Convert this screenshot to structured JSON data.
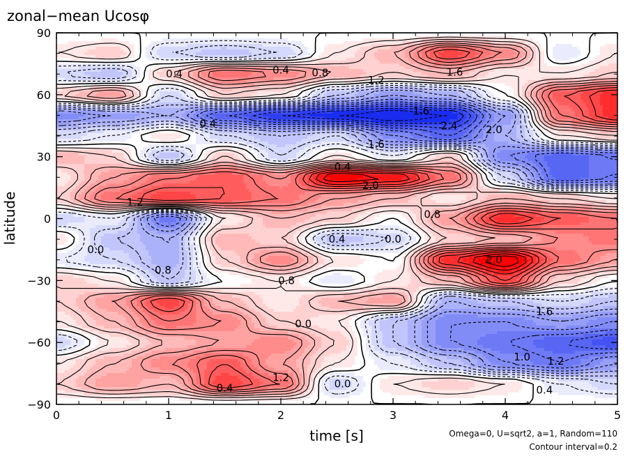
{
  "chart_data": {
    "type": "heatmap",
    "title": "zonal−mean Ucosφ",
    "xlabel": "time [s]",
    "ylabel": "latitude",
    "xlim": [
      0,
      5
    ],
    "ylim": [
      -90,
      90
    ],
    "xticks": [
      "0",
      "1",
      "2",
      "3",
      "4",
      "5"
    ],
    "yticks": [
      "90",
      "60",
      "30",
      "0",
      "−30",
      "−60",
      "−90"
    ],
    "notes": [
      "Omega=0, U=sqrt2, a=1, Random=110",
      "Contour interval=0.2"
    ],
    "contour_interval": 0.2,
    "colormap": {
      "positive": "#ff0000",
      "zero": "#ffffff",
      "negative": "#1a2cf0"
    },
    "x": [
      0,
      0.5,
      1,
      1.5,
      2,
      2.5,
      3,
      3.5,
      4,
      4.5,
      5
    ],
    "y": [
      90,
      80,
      70,
      60,
      50,
      40,
      30,
      20,
      10,
      0,
      -10,
      -20,
      -30,
      -40,
      -50,
      -60,
      -70,
      -80,
      -90
    ],
    "z": [
      [
        0,
        0,
        0,
        0,
        0,
        0,
        0,
        0,
        0,
        0,
        0
      ],
      [
        0.2,
        0.4,
        -0.4,
        -0.6,
        -0.4,
        0.2,
        0.6,
        1.6,
        1.0,
        -0.2,
        0.2
      ],
      [
        -0.4,
        -0.6,
        0.4,
        1.2,
        1.0,
        0.6,
        0.4,
        0.6,
        0.2,
        0.2,
        0.4
      ],
      [
        0.4,
        0.8,
        -0.4,
        0.4,
        0.2,
        -0.6,
        -1.0,
        -0.8,
        0.0,
        1.4,
        1.8
      ],
      [
        -1.2,
        -1.0,
        -0.8,
        -1.6,
        -2.0,
        -2.2,
        -2.4,
        -2.2,
        -1.0,
        1.2,
        1.8
      ],
      [
        -0.4,
        -0.2,
        0.2,
        -0.4,
        -0.6,
        -0.4,
        -1.2,
        -1.6,
        -0.8,
        0.2,
        0.4
      ],
      [
        0.6,
        0.4,
        -0.6,
        0.4,
        -0.4,
        0.2,
        -0.2,
        0.4,
        -1.2,
        -1.6,
        -1.4
      ],
      [
        0.2,
        0.8,
        1.2,
        1.4,
        1.0,
        2.2,
        2.0,
        1.2,
        -0.4,
        -1.6,
        -1.4
      ],
      [
        0.4,
        1.2,
        1.6,
        1.4,
        1.2,
        0.8,
        0.6,
        0.2,
        0.6,
        0.4,
        0.2
      ],
      [
        -0.4,
        -0.2,
        -1.4,
        0.2,
        0.6,
        0.4,
        0.0,
        0.8,
        1.8,
        1.4,
        1.2
      ],
      [
        0.2,
        -0.6,
        -0.8,
        0.6,
        0.4,
        -0.6,
        -0.4,
        0.4,
        0.6,
        1.0,
        1.2
      ],
      [
        -0.2,
        -0.4,
        -0.8,
        0.4,
        1.0,
        0.2,
        0.0,
        1.8,
        2.4,
        1.2,
        0.8
      ],
      [
        0.4,
        0.2,
        -0.6,
        0.0,
        0.2,
        -0.2,
        0.2,
        0.6,
        1.6,
        0.4,
        0.0
      ],
      [
        0.4,
        0.8,
        1.6,
        0.6,
        0.2,
        0.6,
        0.8,
        -0.8,
        -0.6,
        -0.4,
        -0.6
      ],
      [
        0.2,
        0.6,
        1.2,
        1.0,
        0.4,
        0.2,
        -0.6,
        -1.2,
        -1.2,
        -1.0,
        -1.2
      ],
      [
        -0.4,
        0.2,
        0.6,
        0.8,
        1.0,
        0.4,
        -0.6,
        -1.2,
        -1.4,
        -1.6,
        -1.8
      ],
      [
        0.2,
        0.6,
        1.0,
        1.4,
        0.8,
        0.2,
        -0.2,
        -0.6,
        -1.2,
        -1.4,
        -1.0
      ],
      [
        0.4,
        0.8,
        0.6,
        1.6,
        1.2,
        -0.4,
        0.2,
        0.4,
        0.2,
        -0.2,
        -0.4
      ],
      [
        0,
        0,
        0,
        0,
        0,
        0,
        0,
        0,
        0,
        0,
        0
      ]
    ],
    "contour_labels": [
      {
        "x": 2.0,
        "y": 72,
        "text": "0.4"
      },
      {
        "x": 2.35,
        "y": 70.5,
        "text": "0.8"
      },
      {
        "x": 2.85,
        "y": 67,
        "text": "1.2"
      },
      {
        "x": 3.55,
        "y": 71,
        "text": "1.6"
      },
      {
        "x": 1.05,
        "y": 70,
        "text": "0.4"
      },
      {
        "x": 3.25,
        "y": 52,
        "text": "1.6"
      },
      {
        "x": 3.5,
        "y": 45,
        "text": "2.4"
      },
      {
        "x": 3.9,
        "y": 43,
        "text": "2.0"
      },
      {
        "x": 2.85,
        "y": 36,
        "text": "1.6"
      },
      {
        "x": 1.35,
        "y": 46,
        "text": "0.4"
      },
      {
        "x": 2.55,
        "y": 25,
        "text": "0.4"
      },
      {
        "x": 2.8,
        "y": 16,
        "text": "2.0"
      },
      {
        "x": 0.7,
        "y": 8,
        "text": "1.2"
      },
      {
        "x": 3.35,
        "y": 2,
        "text": "0.8"
      },
      {
        "x": 3.0,
        "y": -10,
        "text": "0.0"
      },
      {
        "x": 2.5,
        "y": -10,
        "text": "0.4"
      },
      {
        "x": 2.05,
        "y": -30,
        "text": "0.8"
      },
      {
        "x": 2.2,
        "y": -51,
        "text": "0.0"
      },
      {
        "x": 2.0,
        "y": -77,
        "text": "1.2"
      },
      {
        "x": 1.5,
        "y": -82,
        "text": "0.4"
      },
      {
        "x": 2.55,
        "y": -80,
        "text": "0.0"
      },
      {
        "x": 4.35,
        "y": -83,
        "text": "0.4"
      },
      {
        "x": 4.15,
        "y": -67,
        "text": "1.0"
      },
      {
        "x": 4.45,
        "y": -69,
        "text": "1.2"
      },
      {
        "x": 3.9,
        "y": -20,
        "text": "2.0"
      },
      {
        "x": 4.35,
        "y": -45,
        "text": "1.6"
      },
      {
        "x": 0.35,
        "y": -15,
        "text": "0.0"
      },
      {
        "x": 0.95,
        "y": -25,
        "text": "0.8"
      }
    ]
  }
}
